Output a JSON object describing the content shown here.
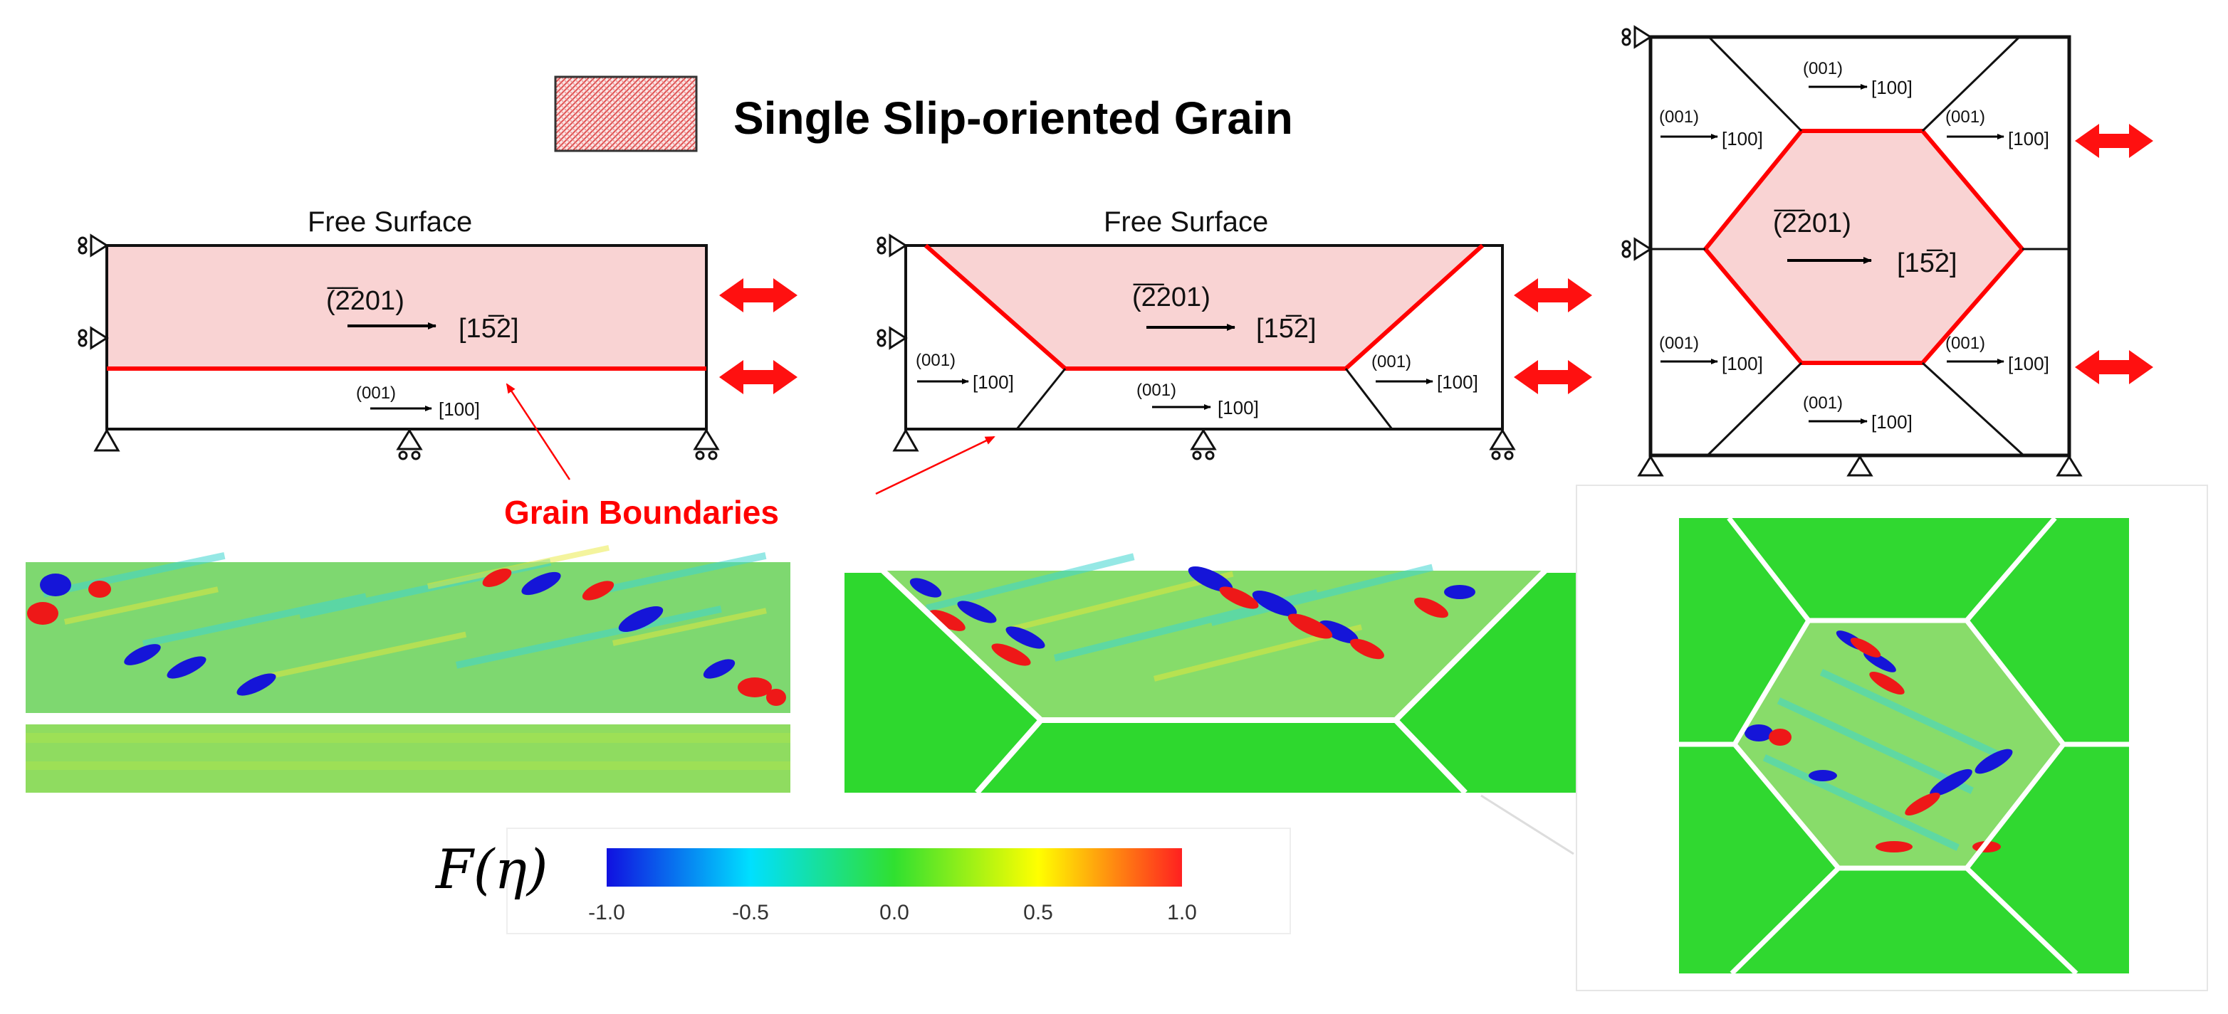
{
  "legend": {
    "label": "Single Slip-oriented Grain"
  },
  "annotations": {
    "free_surface_1": "Free Surface",
    "free_surface_2": "Free Surface",
    "grain_boundaries": "Grain Boundaries"
  },
  "slip_systems": {
    "primary_plane": "(̅2̅201)",
    "primary_direction": "[15̅2]",
    "secondary_plane": "(001)",
    "secondary_direction": "[100]"
  },
  "colorbar": {
    "symbol": "F(η)",
    "ticks": [
      "-1.0",
      "-0.5",
      "0.0",
      "0.5",
      "1.0"
    ],
    "stops": [
      "#1010e0",
      "#00e0ff",
      "#30e030",
      "#ffff00",
      "#ff2020"
    ]
  },
  "colors": {
    "grain_fill": "#f9d3d3",
    "boundary_red": "#ff0000",
    "arrow_red": "#ff1010",
    "field_green": "#33d633"
  }
}
